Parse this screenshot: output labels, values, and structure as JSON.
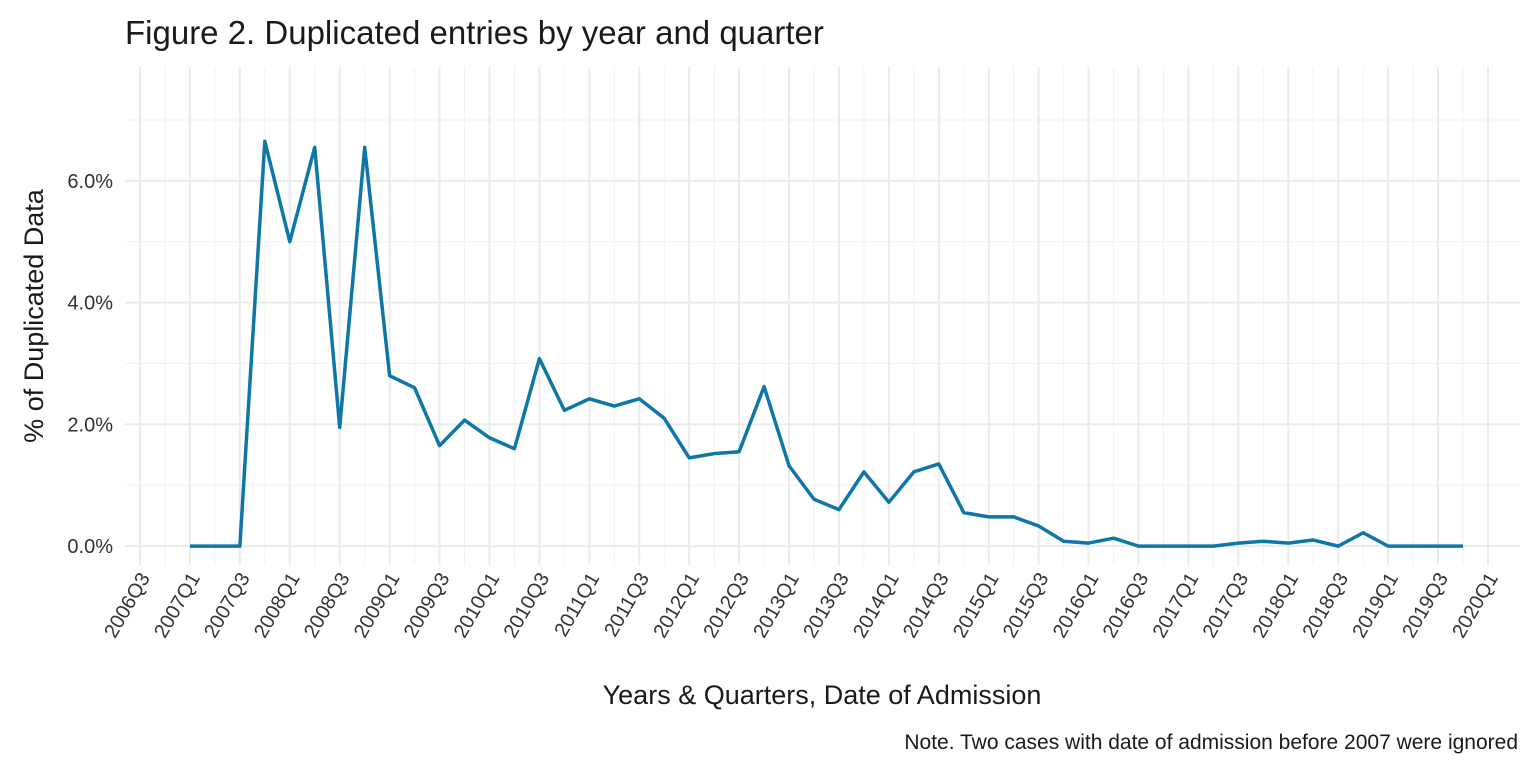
{
  "chart_data": {
    "type": "line",
    "title": "Figure 2. Duplicated entries  by year and quarter",
    "x_label": "Years & Quarters, Date of Admission",
    "y_label": "% of Duplicated Data",
    "note": "Note. Two cases with date of admission before 2007 were ignored",
    "categories": [
      "2006Q3",
      null,
      "2007Q1",
      null,
      "2007Q3",
      null,
      "2008Q1",
      null,
      "2008Q3",
      null,
      "2009Q1",
      null,
      "2009Q3",
      null,
      "2010Q1",
      null,
      "2010Q3",
      null,
      "2011Q1",
      null,
      "2011Q3",
      null,
      "2012Q1",
      null,
      "2012Q3",
      null,
      "2013Q1",
      null,
      "2013Q3",
      null,
      "2014Q1",
      null,
      "2014Q3",
      null,
      "2015Q1",
      null,
      "2015Q3",
      null,
      "2016Q1",
      null,
      "2016Q3",
      null,
      "2017Q1",
      null,
      "2017Q3",
      null,
      "2018Q1",
      null,
      "2018Q3",
      null,
      "2019Q1",
      null,
      "2019Q3",
      null,
      "2020Q1"
    ],
    "series": [
      {
        "name": "Duplicated",
        "color": "#0f76a8",
        "values": [
          null,
          null,
          0,
          0,
          0,
          6.65,
          5.0,
          6.55,
          1.95,
          6.55,
          2.8,
          2.6,
          1.65,
          2.07,
          1.78,
          1.6,
          3.08,
          2.23,
          2.42,
          2.3,
          2.42,
          2.1,
          1.45,
          1.52,
          1.55,
          2.62,
          1.32,
          0.77,
          0.6,
          1.22,
          0.72,
          1.22,
          1.35,
          0.55,
          0.48,
          0.48,
          0.33,
          0.08,
          0.05,
          0.13,
          0,
          0,
          0,
          0,
          0.05,
          0.08,
          0.05,
          0.1,
          0,
          0.22,
          0,
          0,
          0,
          0,
          null
        ]
      }
    ],
    "ylim": [
      -0.31,
      7.87
    ],
    "yticks": [
      {
        "value": 0,
        "label": "0.0%"
      },
      {
        "value": 2,
        "label": "2.0%"
      },
      {
        "value": 4,
        "label": "4.0%"
      },
      {
        "value": 6,
        "label": "6.0%"
      }
    ],
    "minor_yticks": [
      1,
      3,
      5,
      7
    ],
    "grid": true
  }
}
